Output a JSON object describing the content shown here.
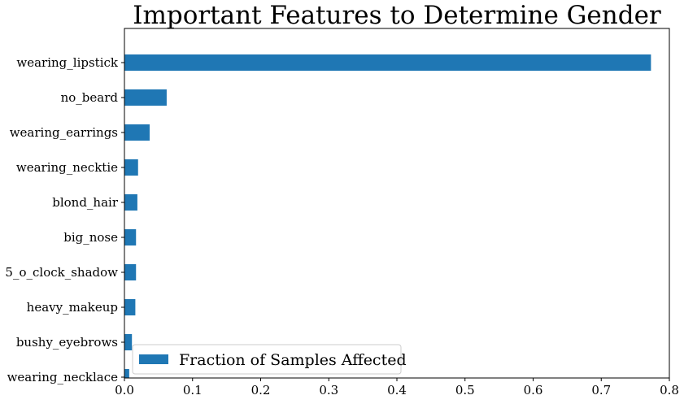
{
  "chart_data": {
    "type": "bar",
    "orientation": "horizontal",
    "title": "Important Features to Determine Gender",
    "xlabel": "",
    "ylabel": "",
    "categories": [
      "wearing_lipstick",
      "no_beard",
      "wearing_earrings",
      "wearing_necktie",
      "blond_hair",
      "big_nose",
      "5_o_clock_shadow",
      "heavy_makeup",
      "bushy_eyebrows",
      "wearing_necklace"
    ],
    "series": [
      {
        "name": "Fraction of Samples Affected",
        "values": [
          0.773,
          0.062,
          0.037,
          0.02,
          0.019,
          0.017,
          0.017,
          0.016,
          0.011,
          0.007
        ],
        "color": "#1f77b4"
      }
    ],
    "xlim": [
      0.0,
      0.8
    ],
    "xticks": [
      "0.0",
      "0.1",
      "0.2",
      "0.3",
      "0.4",
      "0.5",
      "0.6",
      "0.7",
      "0.8"
    ],
    "grid": false,
    "legend_position": "lower-left"
  }
}
